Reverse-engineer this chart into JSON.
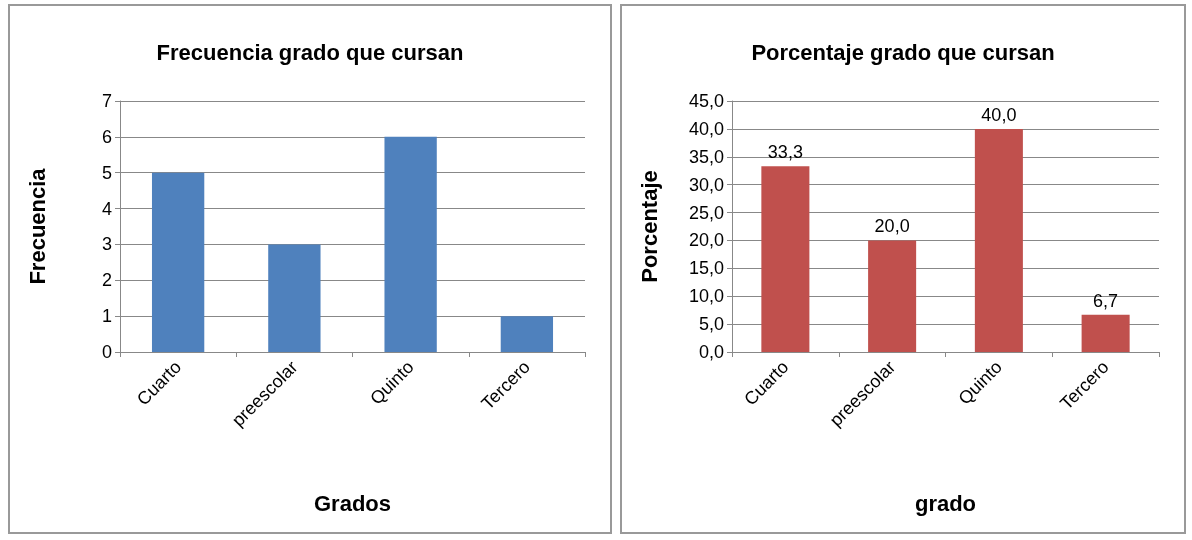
{
  "chart_data": [
    {
      "type": "bar",
      "title": "Frecuencia grado que cursan",
      "xlabel": "Grados",
      "ylabel": "Frecuencia",
      "categories": [
        "Cuarto",
        "preescolar",
        "Quinto",
        "Tercero"
      ],
      "series": [
        {
          "color": "#4f81bd",
          "values": [
            5,
            3,
            6,
            1
          ]
        }
      ],
      "ylim": [
        0,
        7
      ],
      "yticks": [
        0,
        1,
        2,
        3,
        4,
        5,
        6,
        7
      ],
      "grid": "y"
    },
    {
      "type": "bar",
      "title": "Porcentaje grado que cursan",
      "xlabel": "grado",
      "ylabel": "Porcentaje",
      "categories": [
        "Cuarto",
        "preescolar",
        "Quinto",
        "Tercero"
      ],
      "series": [
        {
          "color": "#c0504d",
          "values": [
            33.3,
            20.0,
            40.0,
            6.7
          ],
          "value_labels": [
            "33,3",
            "20,0",
            "40,0",
            "6,7"
          ]
        }
      ],
      "ylim": [
        0,
        45
      ],
      "yticks": [
        {
          "value": 0,
          "label": "0,0"
        },
        {
          "value": 5,
          "label": "5,0"
        },
        {
          "value": 10,
          "label": "10,0"
        },
        {
          "value": 15,
          "label": "15,0"
        },
        {
          "value": 20,
          "label": "20,0"
        },
        {
          "value": 25,
          "label": "25,0"
        },
        {
          "value": 30,
          "label": "30,0"
        },
        {
          "value": 35,
          "label": "35,0"
        },
        {
          "value": 40,
          "label": "40,0"
        },
        {
          "value": 45,
          "label": "45,0"
        }
      ],
      "grid": "y"
    }
  ]
}
